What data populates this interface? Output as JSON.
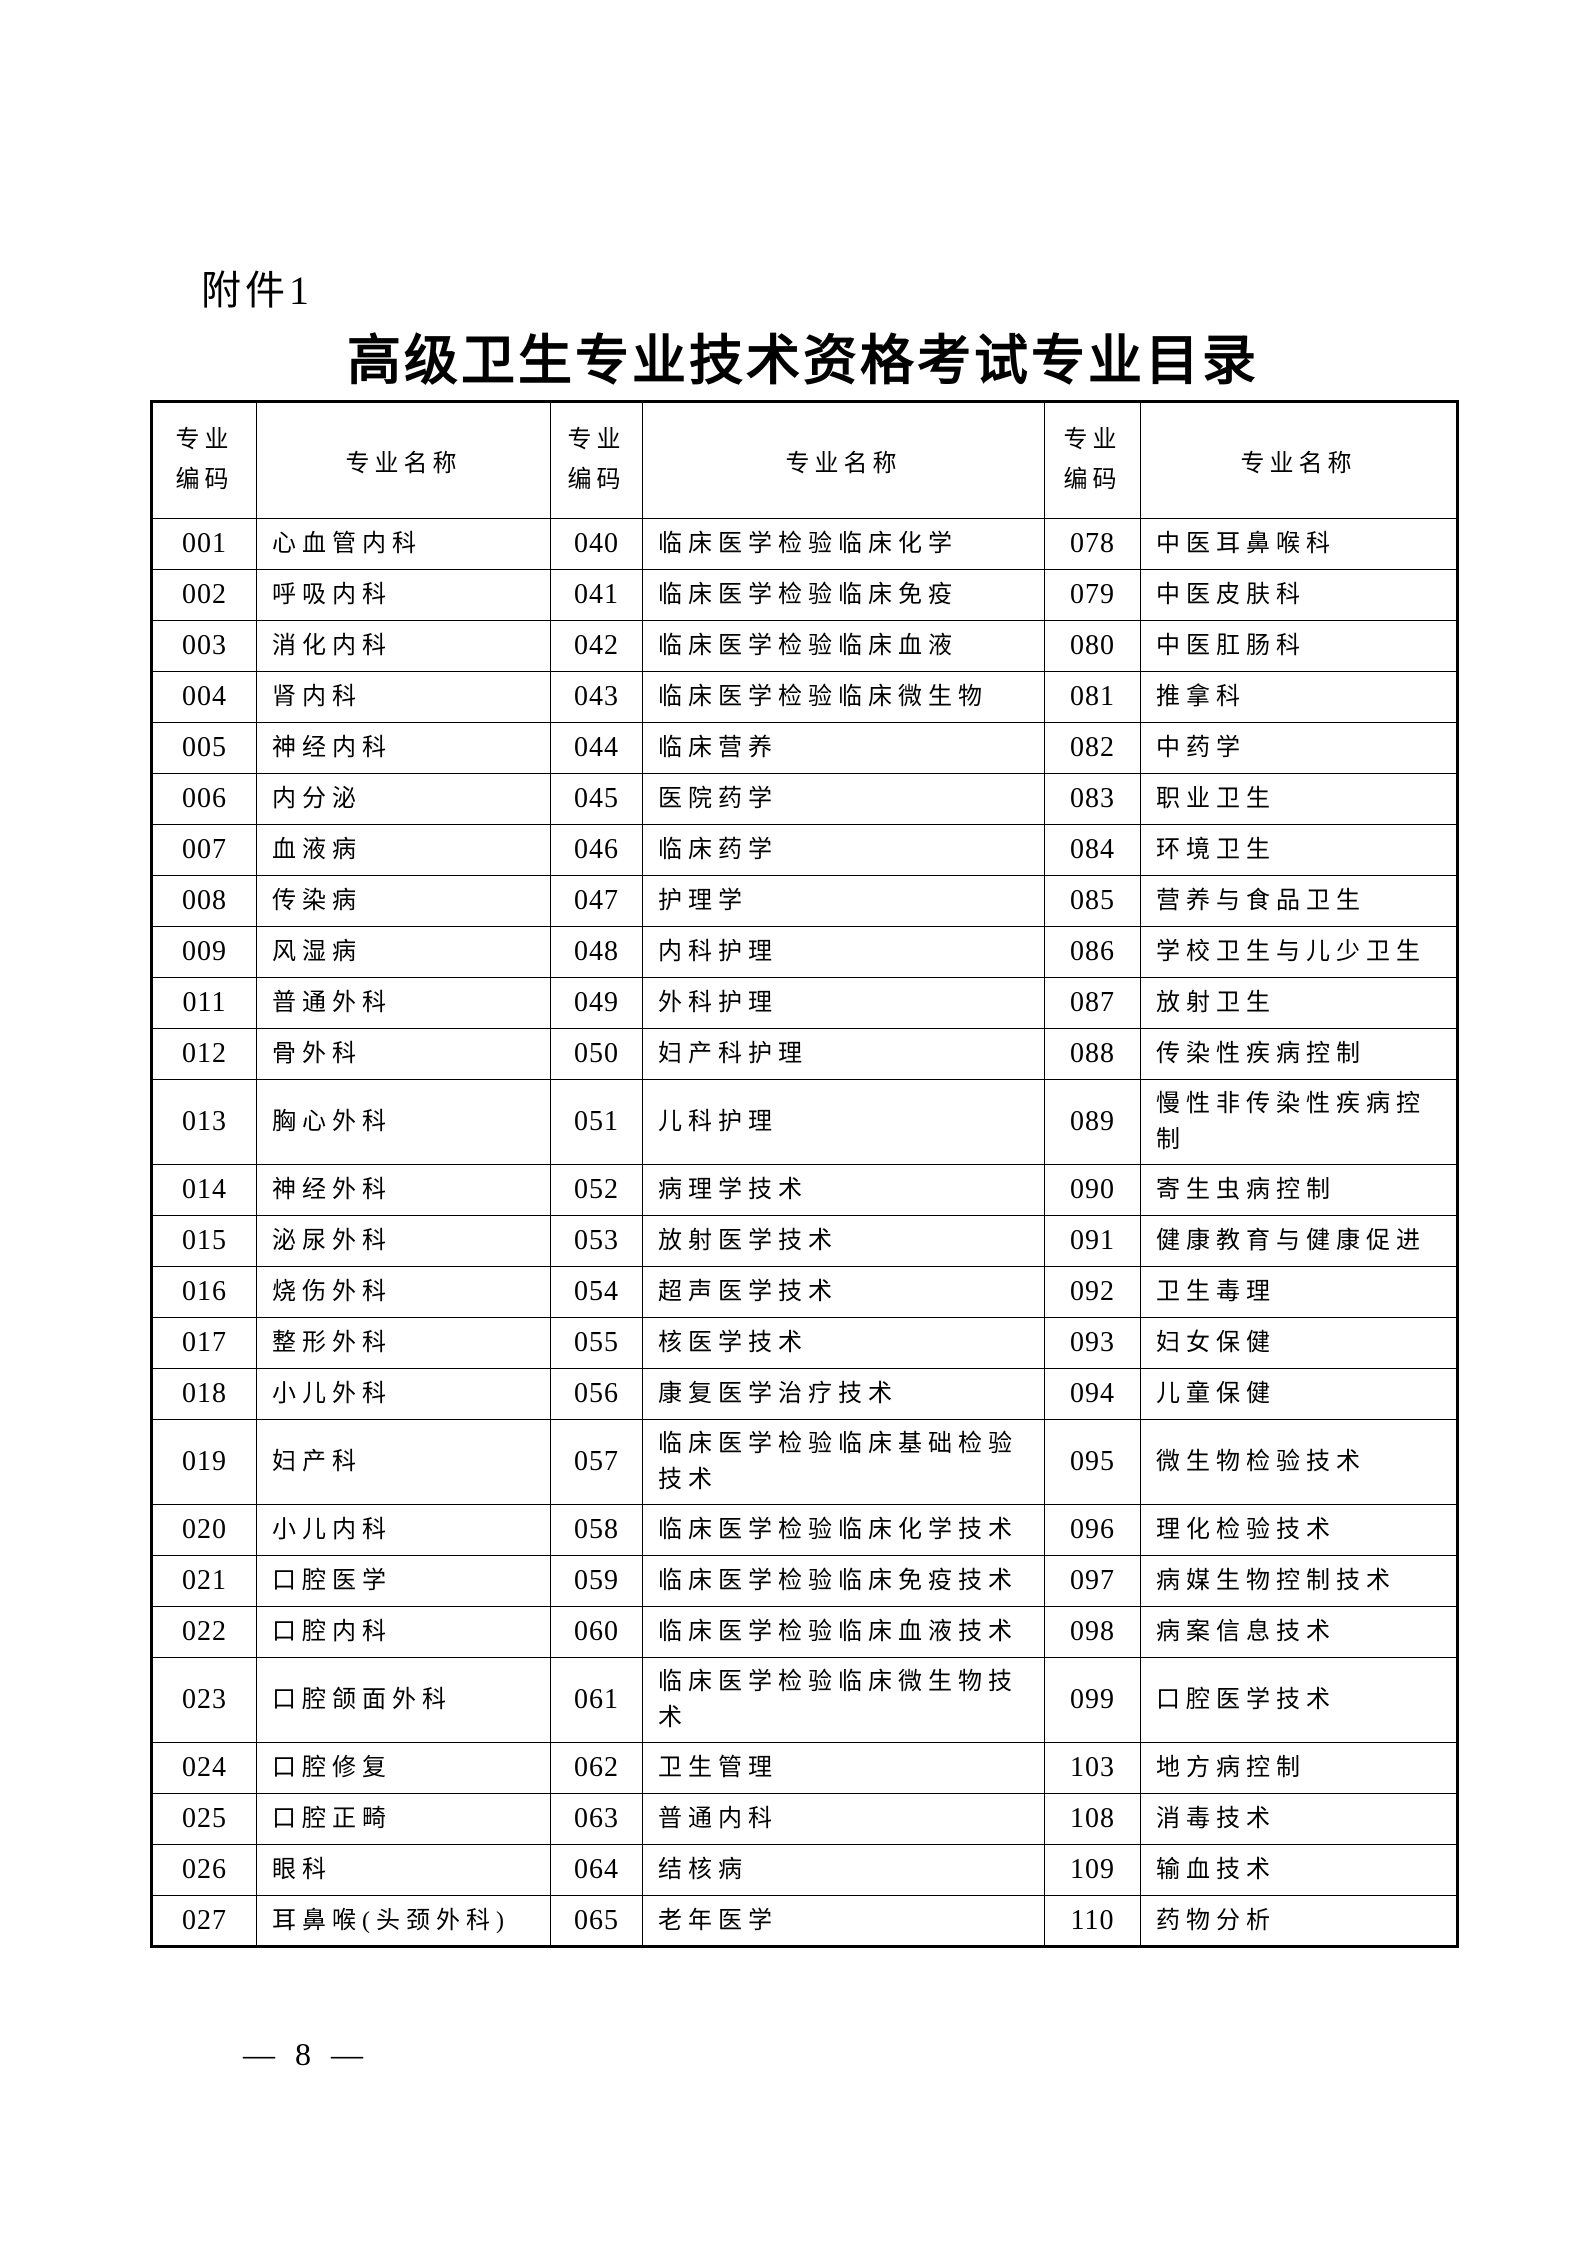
{
  "page": {
    "attachment_label": "附件1",
    "title": "高级卫生专业技术资格考试专业目录",
    "page_number": "— 8 —"
  },
  "table": {
    "header": {
      "code_label": "专业编码",
      "name_label": "专业名称"
    },
    "rows": [
      {
        "c1": "001",
        "n1": "心血管内科",
        "c2": "040",
        "n2": "临床医学检验临床化学",
        "c3": "078",
        "n3": "中医耳鼻喉科"
      },
      {
        "c1": "002",
        "n1": "呼吸内科",
        "c2": "041",
        "n2": "临床医学检验临床免疫",
        "c3": "079",
        "n3": "中医皮肤科"
      },
      {
        "c1": "003",
        "n1": "消化内科",
        "c2": "042",
        "n2": "临床医学检验临床血液",
        "c3": "080",
        "n3": "中医肛肠科"
      },
      {
        "c1": "004",
        "n1": "肾内科",
        "c2": "043",
        "n2": "临床医学检验临床微生物",
        "c3": "081",
        "n3": "推拿科"
      },
      {
        "c1": "005",
        "n1": "神经内科",
        "c2": "044",
        "n2": "临床营养",
        "c3": "082",
        "n3": "中药学"
      },
      {
        "c1": "006",
        "n1": "内分泌",
        "c2": "045",
        "n2": "医院药学",
        "c3": "083",
        "n3": "职业卫生"
      },
      {
        "c1": "007",
        "n1": "血液病",
        "c2": "046",
        "n2": "临床药学",
        "c3": "084",
        "n3": "环境卫生"
      },
      {
        "c1": "008",
        "n1": "传染病",
        "c2": "047",
        "n2": "护理学",
        "c3": "085",
        "n3": "营养与食品卫生"
      },
      {
        "c1": "009",
        "n1": "风湿病",
        "c2": "048",
        "n2": "内科护理",
        "c3": "086",
        "n3": "学校卫生与儿少卫生"
      },
      {
        "c1": "011",
        "n1": "普通外科",
        "c2": "049",
        "n2": "外科护理",
        "c3": "087",
        "n3": "放射卫生"
      },
      {
        "c1": "012",
        "n1": "骨外科",
        "c2": "050",
        "n2": "妇产科护理",
        "c3": "088",
        "n3": "传染性疾病控制"
      },
      {
        "c1": "013",
        "n1": "胸心外科",
        "c2": "051",
        "n2": "儿科护理",
        "c3": "089",
        "n3": "慢性非传染性疾病控制"
      },
      {
        "c1": "014",
        "n1": "神经外科",
        "c2": "052",
        "n2": "病理学技术",
        "c3": "090",
        "n3": "寄生虫病控制"
      },
      {
        "c1": "015",
        "n1": "泌尿外科",
        "c2": "053",
        "n2": "放射医学技术",
        "c3": "091",
        "n3": "健康教育与健康促进"
      },
      {
        "c1": "016",
        "n1": "烧伤外科",
        "c2": "054",
        "n2": "超声医学技术",
        "c3": "092",
        "n3": "卫生毒理"
      },
      {
        "c1": "017",
        "n1": "整形外科",
        "c2": "055",
        "n2": "核医学技术",
        "c3": "093",
        "n3": "妇女保健"
      },
      {
        "c1": "018",
        "n1": "小儿外科",
        "c2": "056",
        "n2": "康复医学治疗技术",
        "c3": "094",
        "n3": "儿童保健"
      },
      {
        "c1": "019",
        "n1": "妇产科",
        "c2": "057",
        "n2": "临床医学检验临床基础检验技术",
        "c3": "095",
        "n3": "微生物检验技术"
      },
      {
        "c1": "020",
        "n1": "小儿内科",
        "c2": "058",
        "n2": "临床医学检验临床化学技术",
        "c3": "096",
        "n3": "理化检验技术"
      },
      {
        "c1": "021",
        "n1": "口腔医学",
        "c2": "059",
        "n2": "临床医学检验临床免疫技术",
        "c3": "097",
        "n3": "病媒生物控制技术"
      },
      {
        "c1": "022",
        "n1": "口腔内科",
        "c2": "060",
        "n2": "临床医学检验临床血液技术",
        "c3": "098",
        "n3": "病案信息技术"
      },
      {
        "c1": "023",
        "n1": "口腔颌面外科",
        "c2": "061",
        "n2": "临床医学检验临床微生物技术",
        "c3": "099",
        "n3": "口腔医学技术"
      },
      {
        "c1": "024",
        "n1": "口腔修复",
        "c2": "062",
        "n2": "卫生管理",
        "c3": "103",
        "n3": "地方病控制"
      },
      {
        "c1": "025",
        "n1": "口腔正畸",
        "c2": "063",
        "n2": "普通内科",
        "c3": "108",
        "n3": "消毒技术"
      },
      {
        "c1": "026",
        "n1": "眼科",
        "c2": "064",
        "n2": "结核病",
        "c3": "109",
        "n3": "输血技术"
      },
      {
        "c1": "027",
        "n1": "耳鼻喉(头颈外科)",
        "c2": "065",
        "n2": "老年医学",
        "c3": "110",
        "n3": "药物分析"
      }
    ]
  }
}
